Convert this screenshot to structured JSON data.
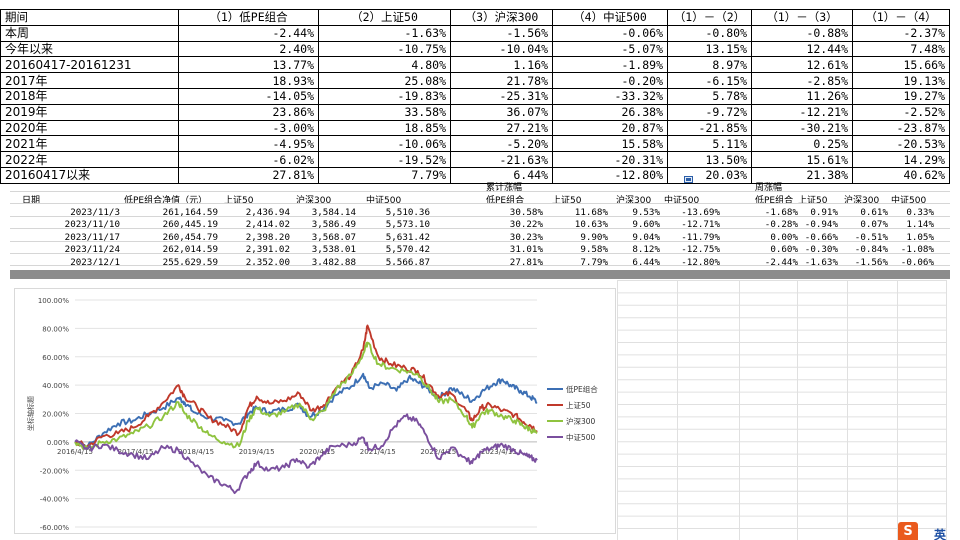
{
  "summary": {
    "headers": [
      "期间",
      "（1）低PE组合",
      "（2）上证50",
      "（3）沪深300",
      "（4）中证500",
      "（1）－（2）",
      "（1）－（3）",
      "（1）－（4）"
    ],
    "rows": [
      [
        "本周",
        "-2.44%",
        "-1.63%",
        "-1.56%",
        "-0.06%",
        "-0.80%",
        "-0.88%",
        "-2.37%"
      ],
      [
        "今年以来",
        "2.40%",
        "-10.75%",
        "-10.04%",
        "-5.07%",
        "13.15%",
        "12.44%",
        "7.48%"
      ],
      [
        "20160417-20161231",
        "13.77%",
        "4.80%",
        "1.16%",
        "-1.89%",
        "8.97%",
        "12.61%",
        "15.66%"
      ],
      [
        "2017年",
        "18.93%",
        "25.08%",
        "21.78%",
        "-0.20%",
        "-6.15%",
        "-2.85%",
        "19.13%"
      ],
      [
        "2018年",
        "-14.05%",
        "-19.83%",
        "-25.31%",
        "-33.32%",
        "5.78%",
        "11.26%",
        "19.27%"
      ],
      [
        "2019年",
        "23.86%",
        "33.58%",
        "36.07%",
        "26.38%",
        "-9.72%",
        "-12.21%",
        "-2.52%"
      ],
      [
        "2020年",
        "-3.00%",
        "18.85%",
        "27.21%",
        "20.87%",
        "-21.85%",
        "-30.21%",
        "-23.87%"
      ],
      [
        "2021年",
        "-4.95%",
        "-10.06%",
        "-5.20%",
        "15.58%",
        "5.11%",
        "0.25%",
        "-20.53%"
      ],
      [
        "2022年",
        "-6.02%",
        "-19.52%",
        "-21.63%",
        "-20.31%",
        "13.50%",
        "15.61%",
        "14.29%"
      ],
      [
        "20160417以来",
        "27.81%",
        "7.79%",
        "6.44%",
        "-12.80%",
        "20.03%",
        "21.38%",
        "40.62%"
      ]
    ]
  },
  "weekly": {
    "group_cumulative": "累计涨幅",
    "group_weekly": "周涨幅",
    "headers": [
      "日期",
      "低PE组合净值（元）",
      "上证50",
      "沪深300",
      "中证500",
      "低PE组合",
      "上证50",
      "沪深300",
      "中证500",
      "低PE组合",
      "上证50",
      "沪深300",
      "中证500"
    ],
    "rows": [
      [
        "2023/11/3",
        "261,164.59",
        "2,436.94",
        "3,584.14",
        "5,510.36",
        "30.58%",
        "11.68%",
        "9.53%",
        "-13.69%",
        "-1.68%",
        "0.91%",
        "0.61%",
        "0.33%"
      ],
      [
        "2023/11/10",
        "260,445.19",
        "2,414.02",
        "3,586.49",
        "5,573.10",
        "30.22%",
        "10.63%",
        "9.60%",
        "-12.71%",
        "-0.28%",
        "-0.94%",
        "0.07%",
        "1.14%"
      ],
      [
        "2023/11/17",
        "260,454.79",
        "2,398.20",
        "3,568.07",
        "5,631.42",
        "30.23%",
        "9.90%",
        "9.04%",
        "-11.79%",
        "0.00%",
        "-0.66%",
        "-0.51%",
        "1.05%"
      ],
      [
        "2023/11/24",
        "262,014.59",
        "2,391.02",
        "3,538.01",
        "5,570.42",
        "31.01%",
        "9.58%",
        "8.12%",
        "-12.75%",
        "0.60%",
        "-0.30%",
        "-0.84%",
        "-1.08%"
      ],
      [
        "2023/12/1",
        "255,629.59",
        "2,352.00",
        "3,482.88",
        "5,566.87",
        "27.81%",
        "7.79%",
        "6.44%",
        "-12.80%",
        "-2.44%",
        "-1.63%",
        "-1.56%",
        "-0.06%"
      ]
    ]
  },
  "chart_data": {
    "type": "line",
    "title": "",
    "xlabel": "",
    "ylabel": "坐标轴标题",
    "ylim": [
      -60,
      100
    ],
    "yticks": [
      "100.00%",
      "80.00%",
      "60.00%",
      "40.00%",
      "20.00%",
      "0.00%",
      "-20.00%",
      "-40.00%",
      "-60.00%"
    ],
    "ytick_values": [
      100,
      80,
      60,
      40,
      20,
      0,
      -20,
      -40,
      -60
    ],
    "xticks": [
      "2016/4/15",
      "2017/4/15",
      "2018/4/15",
      "2019/4/15",
      "2020/4/15",
      "2021/4/15",
      "2022/4/15",
      "2023/4/15"
    ],
    "xtick_years": [
      2016.29,
      2017.29,
      2018.29,
      2019.29,
      2020.29,
      2021.29,
      2022.29,
      2023.29
    ],
    "xlim": [
      2016.29,
      2023.92
    ],
    "grid": true,
    "legend": "right",
    "series": [
      {
        "name": "低PE组合",
        "color": "#3c6fb4",
        "points": [
          [
            2016.29,
            0
          ],
          [
            2016.5,
            -3
          ],
          [
            2016.75,
            6
          ],
          [
            2017.0,
            13
          ],
          [
            2017.25,
            15
          ],
          [
            2017.5,
            20
          ],
          [
            2017.75,
            24
          ],
          [
            2018.0,
            31
          ],
          [
            2018.1,
            28
          ],
          [
            2018.25,
            21
          ],
          [
            2018.5,
            17
          ],
          [
            2018.75,
            15
          ],
          [
            2019.0,
            13
          ],
          [
            2019.15,
            20
          ],
          [
            2019.29,
            24
          ],
          [
            2019.5,
            21
          ],
          [
            2019.75,
            23
          ],
          [
            2020.0,
            26
          ],
          [
            2020.15,
            18
          ],
          [
            2020.35,
            22
          ],
          [
            2020.6,
            33
          ],
          [
            2020.85,
            39
          ],
          [
            2021.05,
            48
          ],
          [
            2021.15,
            38
          ],
          [
            2021.4,
            41
          ],
          [
            2021.6,
            36
          ],
          [
            2021.8,
            45
          ],
          [
            2021.95,
            42
          ],
          [
            2022.1,
            38
          ],
          [
            2022.3,
            31
          ],
          [
            2022.5,
            38
          ],
          [
            2022.7,
            33
          ],
          [
            2022.85,
            29
          ],
          [
            2023.0,
            35
          ],
          [
            2023.2,
            41
          ],
          [
            2023.35,
            44
          ],
          [
            2023.5,
            39
          ],
          [
            2023.65,
            36
          ],
          [
            2023.8,
            32
          ],
          [
            2023.92,
            28
          ]
        ]
      },
      {
        "name": "上证50",
        "color": "#c0392b",
        "points": [
          [
            2016.29,
            0
          ],
          [
            2016.5,
            -3
          ],
          [
            2016.75,
            4
          ],
          [
            2017.0,
            6
          ],
          [
            2017.25,
            10
          ],
          [
            2017.5,
            18
          ],
          [
            2017.75,
            28
          ],
          [
            2018.0,
            40
          ],
          [
            2018.1,
            32
          ],
          [
            2018.3,
            25
          ],
          [
            2018.5,
            17
          ],
          [
            2018.75,
            12
          ],
          [
            2019.0,
            6
          ],
          [
            2019.15,
            24
          ],
          [
            2019.29,
            32
          ],
          [
            2019.5,
            27
          ],
          [
            2019.75,
            29
          ],
          [
            2020.0,
            34
          ],
          [
            2020.2,
            22
          ],
          [
            2020.4,
            26
          ],
          [
            2020.6,
            38
          ],
          [
            2020.85,
            47
          ],
          [
            2021.05,
            65
          ],
          [
            2021.12,
            82
          ],
          [
            2021.3,
            60
          ],
          [
            2021.5,
            55
          ],
          [
            2021.75,
            52
          ],
          [
            2021.95,
            50
          ],
          [
            2022.15,
            40
          ],
          [
            2022.3,
            32
          ],
          [
            2022.5,
            34
          ],
          [
            2022.75,
            22
          ],
          [
            2022.85,
            15
          ],
          [
            2023.0,
            24
          ],
          [
            2023.15,
            26
          ],
          [
            2023.35,
            22
          ],
          [
            2023.55,
            19
          ],
          [
            2023.7,
            14
          ],
          [
            2023.8,
            12
          ],
          [
            2023.92,
            8
          ]
        ]
      },
      {
        "name": "沪深300",
        "color": "#8fc33f",
        "points": [
          [
            2016.29,
            0
          ],
          [
            2016.5,
            -5
          ],
          [
            2016.75,
            0
          ],
          [
            2017.0,
            2
          ],
          [
            2017.25,
            6
          ],
          [
            2017.5,
            11
          ],
          [
            2017.75,
            18
          ],
          [
            2018.0,
            28
          ],
          [
            2018.1,
            20
          ],
          [
            2018.3,
            13
          ],
          [
            2018.5,
            5
          ],
          [
            2018.75,
            0
          ],
          [
            2019.0,
            -3
          ],
          [
            2019.15,
            15
          ],
          [
            2019.29,
            24
          ],
          [
            2019.5,
            18
          ],
          [
            2019.75,
            21
          ],
          [
            2020.0,
            27
          ],
          [
            2020.2,
            16
          ],
          [
            2020.4,
            22
          ],
          [
            2020.6,
            37
          ],
          [
            2020.85,
            47
          ],
          [
            2021.05,
            62
          ],
          [
            2021.12,
            70
          ],
          [
            2021.3,
            55
          ],
          [
            2021.5,
            52
          ],
          [
            2021.75,
            50
          ],
          [
            2021.95,
            48
          ],
          [
            2022.15,
            37
          ],
          [
            2022.3,
            28
          ],
          [
            2022.5,
            30
          ],
          [
            2022.75,
            18
          ],
          [
            2022.85,
            10
          ],
          [
            2023.0,
            20
          ],
          [
            2023.15,
            22
          ],
          [
            2023.35,
            18
          ],
          [
            2023.55,
            15
          ],
          [
            2023.7,
            11
          ],
          [
            2023.8,
            9
          ],
          [
            2023.92,
            6
          ]
        ]
      },
      {
        "name": "中证500",
        "color": "#7a4f9e",
        "points": [
          [
            2016.29,
            0
          ],
          [
            2016.5,
            -5
          ],
          [
            2016.75,
            -2
          ],
          [
            2017.0,
            -6
          ],
          [
            2017.25,
            -9
          ],
          [
            2017.5,
            -12
          ],
          [
            2017.75,
            -4
          ],
          [
            2018.0,
            -6
          ],
          [
            2018.2,
            -14
          ],
          [
            2018.5,
            -25
          ],
          [
            2018.75,
            -30
          ],
          [
            2018.95,
            -35
          ],
          [
            2019.15,
            -22
          ],
          [
            2019.29,
            -15
          ],
          [
            2019.5,
            -20
          ],
          [
            2019.75,
            -18
          ],
          [
            2019.95,
            -12
          ],
          [
            2020.15,
            -18
          ],
          [
            2020.35,
            -10
          ],
          [
            2020.55,
            -3
          ],
          [
            2020.85,
            -2
          ],
          [
            2021.05,
            3
          ],
          [
            2021.15,
            -5
          ],
          [
            2021.35,
            -3
          ],
          [
            2021.55,
            10
          ],
          [
            2021.75,
            18
          ],
          [
            2021.95,
            14
          ],
          [
            2022.1,
            4
          ],
          [
            2022.3,
            -12
          ],
          [
            2022.5,
            -4
          ],
          [
            2022.75,
            -12
          ],
          [
            2022.85,
            -15
          ],
          [
            2023.0,
            -7
          ],
          [
            2023.2,
            -4
          ],
          [
            2023.35,
            -2
          ],
          [
            2023.55,
            -6
          ],
          [
            2023.7,
            -9
          ],
          [
            2023.8,
            -11
          ],
          [
            2023.92,
            -13
          ]
        ]
      }
    ]
  }
}
